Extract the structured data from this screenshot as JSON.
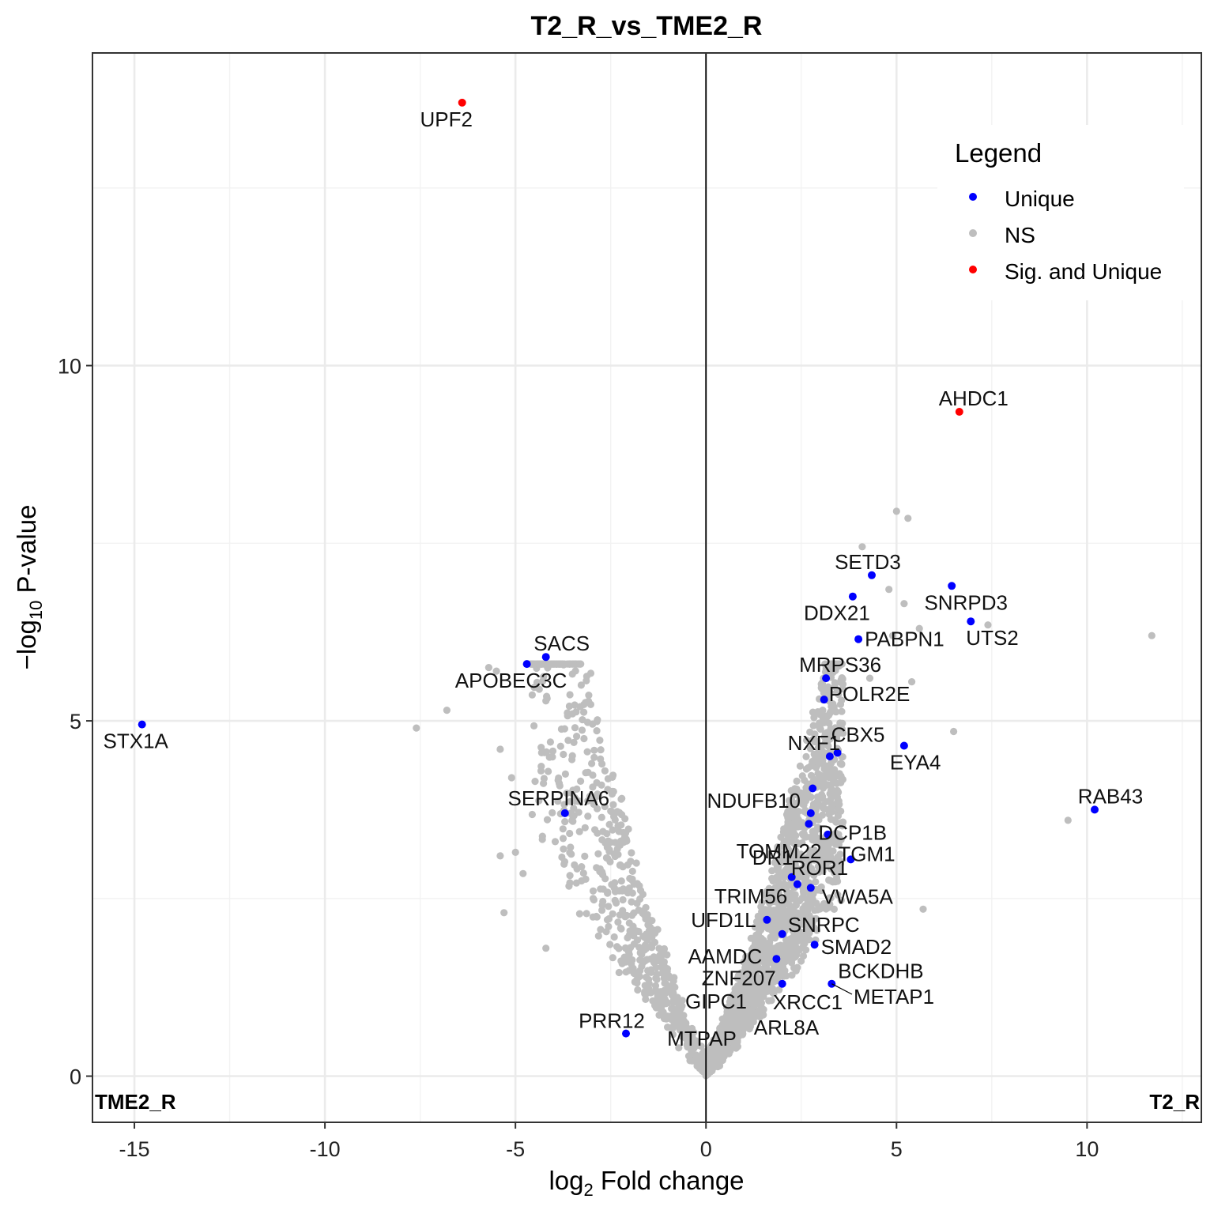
{
  "chart_data": {
    "type": "scatter",
    "title": "T2_R_vs_TME2_R",
    "xlabel_main": "log",
    "xlabel_sub": "2",
    "xlabel_rest": " Fold change",
    "ylabel_pre": "−log",
    "ylabel_sub": "10",
    "ylabel_rest": " P-value",
    "xlim": [
      -16.1,
      13.0
    ],
    "ylim": [
      -0.65,
      14.4
    ],
    "x_ticks": [
      -15,
      -10,
      -5,
      0,
      5,
      10
    ],
    "x_tick_labels": [
      "-15",
      "-10",
      "-5",
      "0",
      "5",
      "10"
    ],
    "y_ticks": [
      0,
      5,
      10
    ],
    "y_tick_labels": [
      "0",
      "5",
      "10"
    ],
    "grid": true,
    "corner_left": "TME2_R",
    "corner_right": "T2_R",
    "legend": {
      "title": "Legend",
      "position": "top-right",
      "entries": [
        {
          "label": "Unique",
          "color": "#0000ff"
        },
        {
          "label": "NS",
          "color": "#bebebe"
        },
        {
          "label": "Sig. and Unique",
          "color": "#ff0000"
        }
      ]
    },
    "colors": {
      "Unique": "#0000ff",
      "NS": "#bebebe",
      "Sig. and Unique": "#ff0000"
    },
    "series": [
      {
        "name": "Sig. and Unique",
        "points": [
          {
            "x": -6.4,
            "y": 13.7,
            "label": "UPF2"
          },
          {
            "x": 6.65,
            "y": 9.35,
            "label": "AHDC1"
          }
        ]
      },
      {
        "name": "Unique",
        "points": [
          {
            "x": -14.8,
            "y": 4.95,
            "label": "STX1A"
          },
          {
            "x": -4.2,
            "y": 5.9,
            "label": "SACS"
          },
          {
            "x": -4.7,
            "y": 5.8,
            "label": "APOBEC3C"
          },
          {
            "x": -3.7,
            "y": 3.7,
            "label": "SERPINA6"
          },
          {
            "x": -2.1,
            "y": 0.6,
            "label": "PRR12"
          },
          {
            "x": 4.35,
            "y": 7.05,
            "label": "SETD3"
          },
          {
            "x": 6.45,
            "y": 6.9,
            "label": "SNRPD3"
          },
          {
            "x": 3.85,
            "y": 6.75,
            "label": "DDX21"
          },
          {
            "x": 4.0,
            "y": 6.15,
            "label": "PABPN1"
          },
          {
            "x": 6.95,
            "y": 6.4,
            "label": "UTS2"
          },
          {
            "x": 3.15,
            "y": 5.6,
            "label": "MRPS36"
          },
          {
            "x": 3.1,
            "y": 5.3,
            "label": "POLR2E"
          },
          {
            "x": 3.45,
            "y": 4.55,
            "label": "CBX5"
          },
          {
            "x": 5.2,
            "y": 4.65,
            "label": "EYA4"
          },
          {
            "x": 3.25,
            "y": 4.5,
            "label": "NXF1"
          },
          {
            "x": 2.8,
            "y": 4.05,
            "label": ""
          },
          {
            "x": 10.2,
            "y": 3.75,
            "label": "RAB43"
          },
          {
            "x": 2.75,
            "y": 3.7,
            "label": "NDUFB10"
          },
          {
            "x": 3.2,
            "y": 3.4,
            "label": "TOMM22"
          },
          {
            "x": 2.7,
            "y": 3.55,
            "label": "DCP1B"
          },
          {
            "x": 3.8,
            "y": 3.05,
            "label": "TGM1"
          },
          {
            "x": 2.25,
            "y": 2.8,
            "label": "DR1"
          },
          {
            "x": 2.4,
            "y": 2.7,
            "label": "ROR1"
          },
          {
            "x": 2.75,
            "y": 2.65,
            "label": "VWA5A"
          },
          {
            "x": 1.6,
            "y": 2.2,
            "label": "UFD1L"
          },
          {
            "x": 2.0,
            "y": 2.0,
            "label": "SNRPC"
          },
          {
            "x": 1.85,
            "y": 1.65,
            "label": "AAMDC"
          },
          {
            "x": 2.85,
            "y": 1.85,
            "label": "SMAD2"
          },
          {
            "x": 2.0,
            "y": 1.3,
            "label": "ZNF207"
          },
          {
            "x": 3.3,
            "y": 1.3,
            "label": "BCKDHB"
          }
        ]
      }
    ],
    "extra_labels": [
      "TRIM56",
      "GIPC1",
      "XRCC1",
      "METAP1",
      "ARL8A",
      "MTPAP"
    ]
  }
}
